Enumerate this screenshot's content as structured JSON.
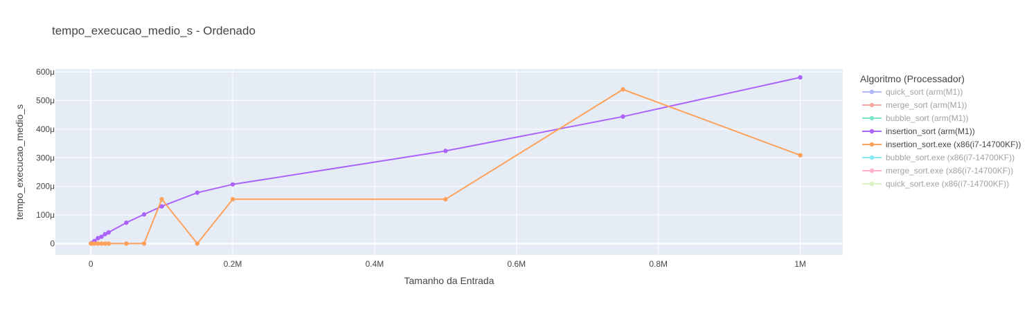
{
  "chart_data": {
    "type": "line",
    "title": "tempo_execucao_medio_s - Ordenado",
    "xlabel": "Tamanho da Entrada",
    "ylabel": "tempo_execucao_medio_s",
    "xlim": [
      -50000,
      1060000
    ],
    "ylim": [
      -4e-05,
      0.00061
    ],
    "x_ticks": [
      {
        "value": 0,
        "label": "0"
      },
      {
        "value": 200000,
        "label": "0.2M"
      },
      {
        "value": 400000,
        "label": "0.4M"
      },
      {
        "value": 600000,
        "label": "0.6M"
      },
      {
        "value": 800000,
        "label": "0.8M"
      },
      {
        "value": 1000000,
        "label": "1M"
      }
    ],
    "y_ticks": [
      {
        "value": 0,
        "label": "0"
      },
      {
        "value": 0.0001,
        "label": "100μ"
      },
      {
        "value": 0.0002,
        "label": "200μ"
      },
      {
        "value": 0.0003,
        "label": "300μ"
      },
      {
        "value": 0.0004,
        "label": "400μ"
      },
      {
        "value": 0.0005,
        "label": "500μ"
      },
      {
        "value": 0.0006,
        "label": "600μ"
      }
    ],
    "grid": true,
    "legend_title": "Algoritmo (Processador)",
    "legend_placement": "right",
    "series": [
      {
        "name": "quick_sort (arm(M1))",
        "color": "#636efa",
        "visible": false,
        "x": [],
        "y": []
      },
      {
        "name": "merge_sort (arm(M1))",
        "color": "#ef553b",
        "visible": false,
        "x": [],
        "y": []
      },
      {
        "name": "bubble_sort (arm(M1))",
        "color": "#00cc96",
        "visible": false,
        "x": [],
        "y": []
      },
      {
        "name": "insertion_sort (arm(M1))",
        "color": "#ab63fa",
        "visible": true,
        "x": [
          100,
          1000,
          5000,
          10000,
          15000,
          20000,
          25000,
          50000,
          75000,
          100000,
          150000,
          200000,
          500000,
          750000,
          1000000
        ],
        "y": [
          5e-07,
          2e-06,
          9e-06,
          1.9e-05,
          2.4e-05,
          3.3e-05,
          3.9e-05,
          7.3e-05,
          0.000102,
          0.00013,
          0.000178,
          0.000207,
          0.000324,
          0.000444,
          0.000581
        ]
      },
      {
        "name": "insertion_sort.exe (x86(i7-14700KF))",
        "color": "#ffa15a",
        "visible": true,
        "x": [
          100,
          1000,
          5000,
          10000,
          15000,
          20000,
          25000,
          50000,
          75000,
          100000,
          150000,
          200000,
          500000,
          750000,
          1000000
        ],
        "y": [
          0,
          0,
          0,
          0,
          0,
          0,
          0,
          0,
          0,
          0.000155,
          0,
          0.000155,
          0.000155,
          0.000539,
          0.000309
        ]
      },
      {
        "name": "bubble_sort.exe (x86(i7-14700KF))",
        "color": "#19d3f3",
        "visible": false,
        "x": [],
        "y": []
      },
      {
        "name": "merge_sort.exe (x86(i7-14700KF))",
        "color": "#ff6692",
        "visible": false,
        "x": [],
        "y": []
      },
      {
        "name": "quick_sort.exe (x86(i7-14700KF))",
        "color": "#b6e880",
        "visible": false,
        "x": [],
        "y": []
      }
    ]
  }
}
